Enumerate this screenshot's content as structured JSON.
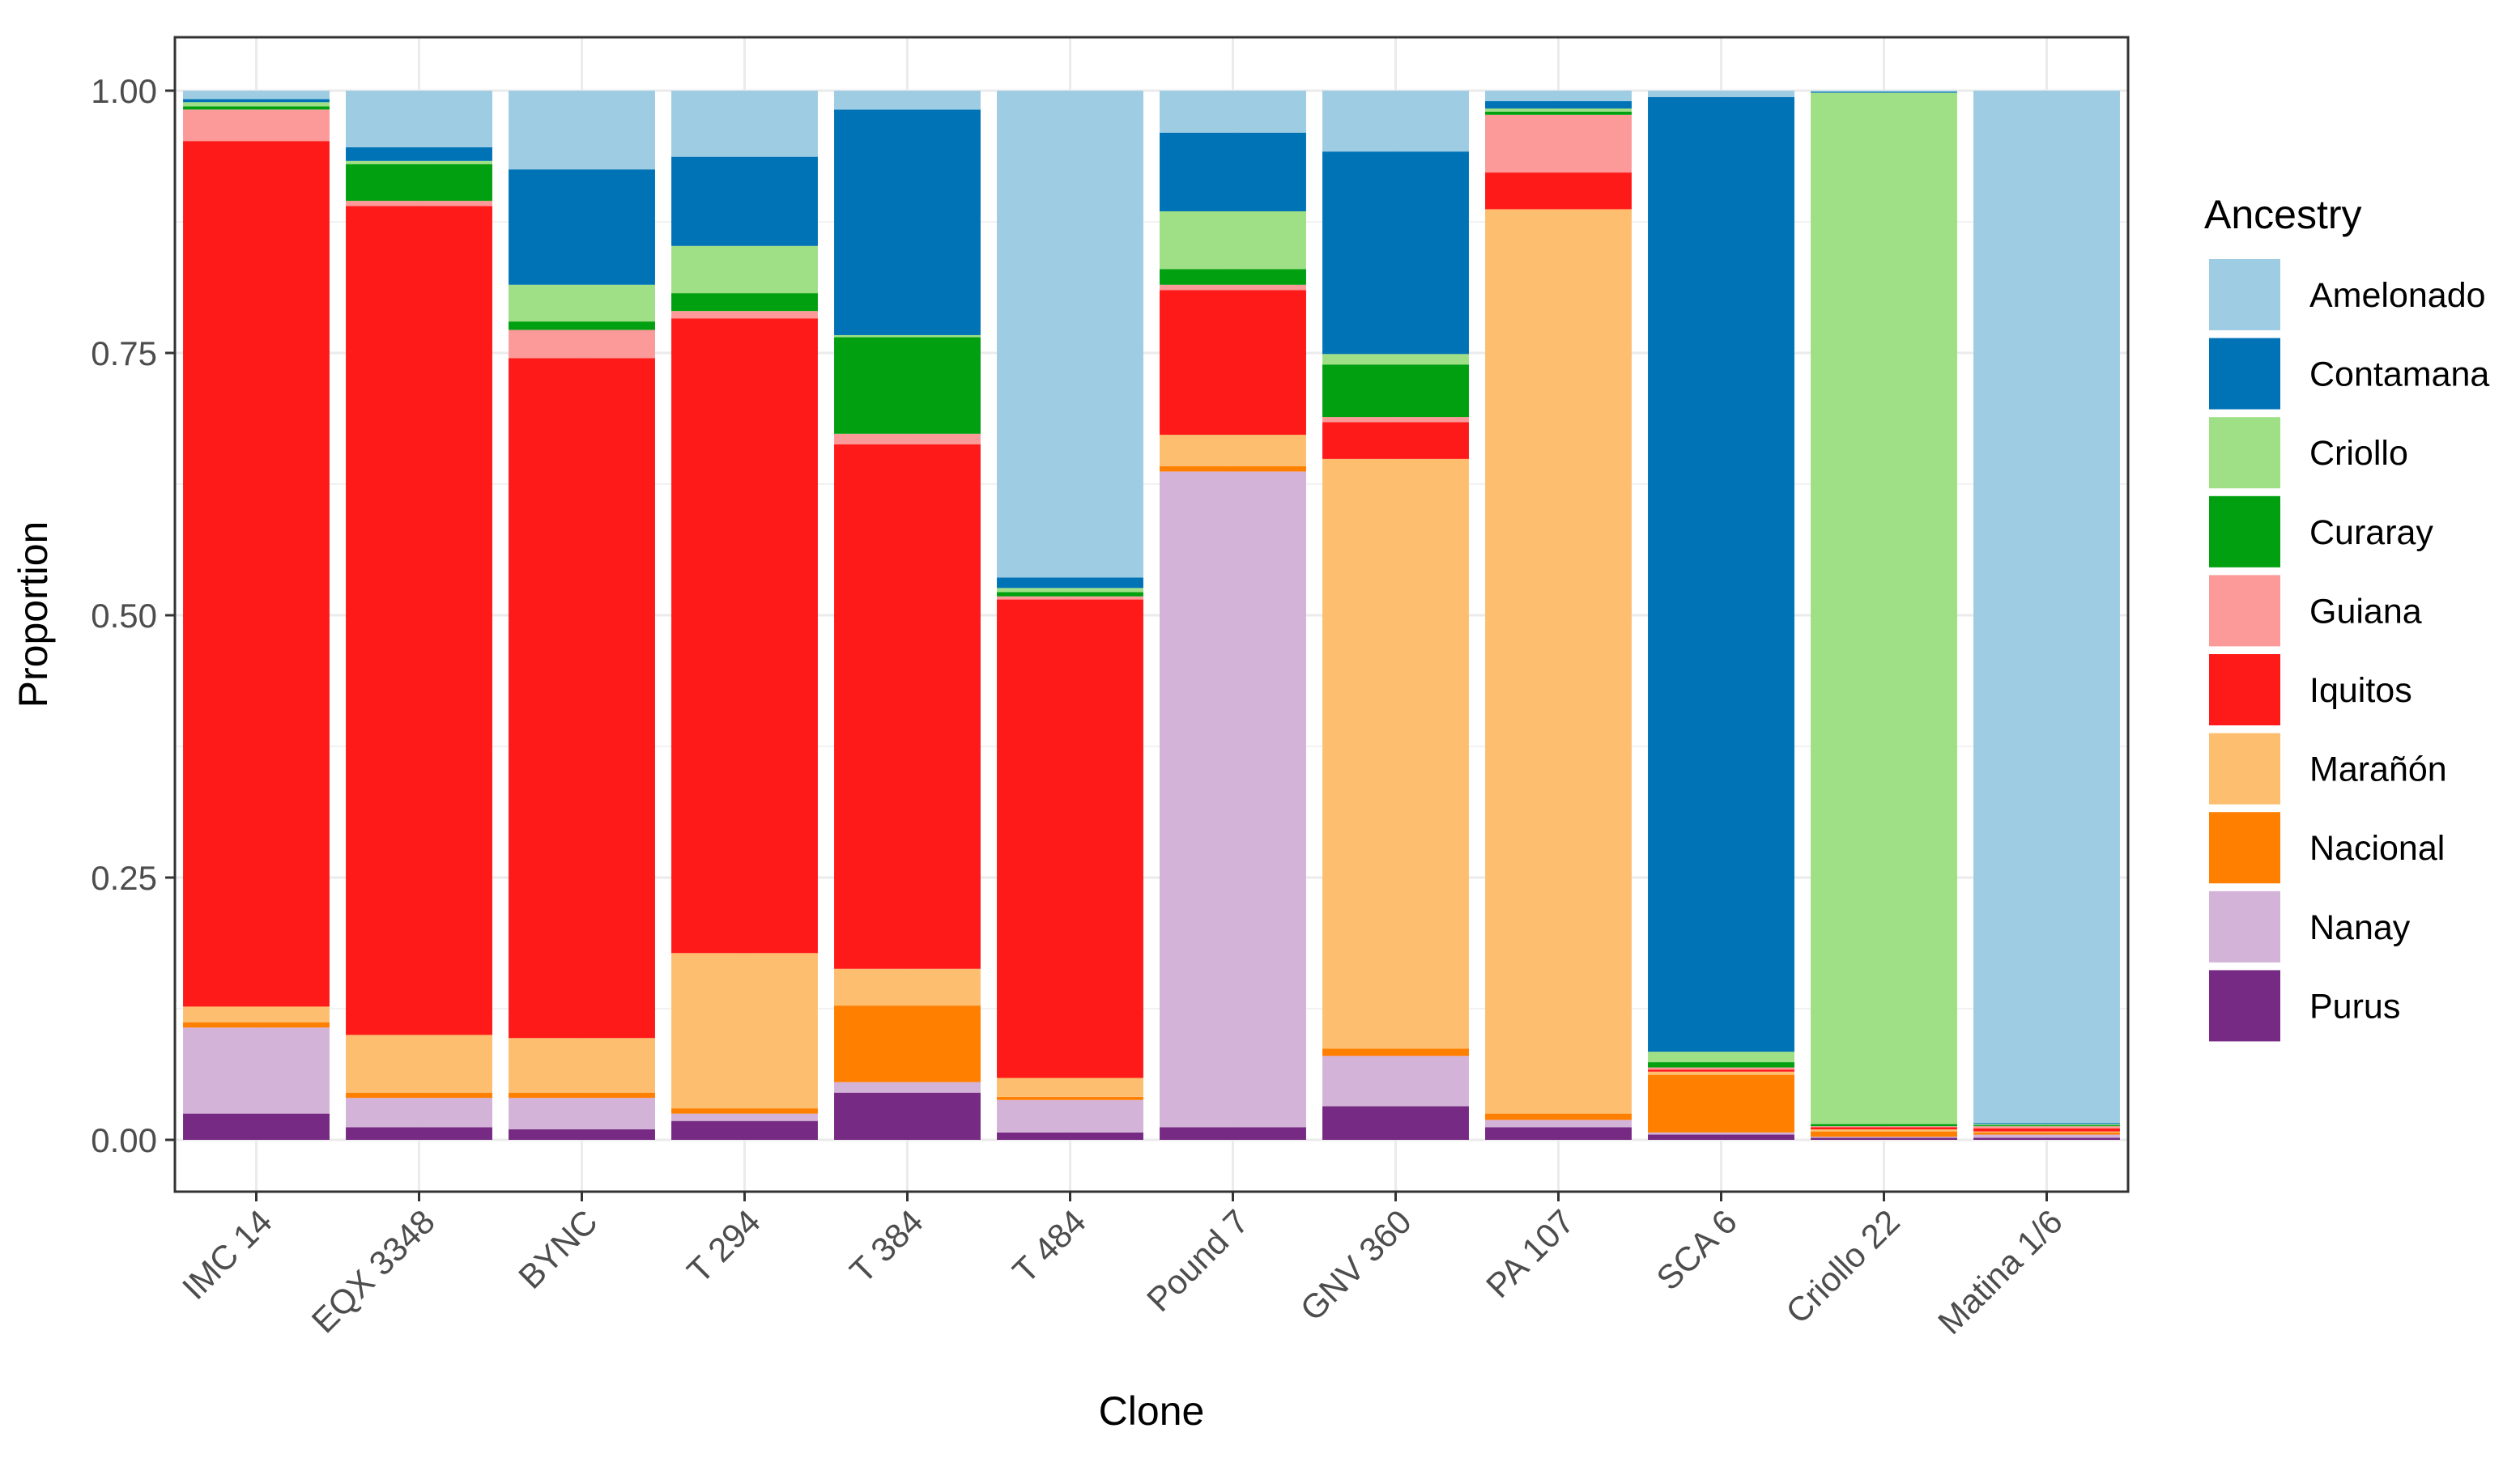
{
  "chart_data": {
    "type": "bar",
    "stacked": true,
    "xlabel": "Clone",
    "ylabel": "Proportion",
    "ylim": [
      0,
      1
    ],
    "yticks": [
      "0.00",
      "0.25",
      "0.50",
      "0.75",
      "1.00"
    ],
    "ytick_values": [
      0,
      0.25,
      0.5,
      0.75,
      1.0
    ],
    "grid": true,
    "legend_title": "Ancestry",
    "legend_position": "right",
    "categories": [
      "IMC 14",
      "EQX 3348",
      "BYNC",
      "T 294",
      "T 384",
      "T 484",
      "Pound 7",
      "GNV 360",
      "PA 107",
      "SCA 6",
      "Criollo 22",
      "Matina 1/6"
    ],
    "series": [
      {
        "name": "Purus",
        "color": "#762A83",
        "values": [
          0.025,
          0.012,
          0.01,
          0.018,
          0.045,
          0.007,
          0.012,
          0.032,
          0.012,
          0.005,
          0.002,
          0.002
        ]
      },
      {
        "name": "Nanay",
        "color": "#D4B3D9",
        "values": [
          0.082,
          0.028,
          0.03,
          0.007,
          0.01,
          0.031,
          0.625,
          0.048,
          0.007,
          0.002,
          0.001,
          0.003
        ]
      },
      {
        "name": "Nacional",
        "color": "#FF7F00",
        "values": [
          0.005,
          0.005,
          0.005,
          0.005,
          0.073,
          0.003,
          0.005,
          0.007,
          0.006,
          0.055,
          0.005,
          0.002
        ]
      },
      {
        "name": "Marañón",
        "color": "#FDBF6F",
        "values": [
          0.015,
          0.055,
          0.052,
          0.148,
          0.035,
          0.018,
          0.03,
          0.562,
          0.862,
          0.003,
          0.002,
          0.001
        ]
      },
      {
        "name": "Iquitos",
        "color": "#FF1A1A",
        "values": [
          0.825,
          0.79,
          0.648,
          0.605,
          0.5,
          0.456,
          0.138,
          0.035,
          0.035,
          0.002,
          0.002,
          0.003
        ]
      },
      {
        "name": "Guiana",
        "color": "#FB9A99",
        "values": [
          0.03,
          0.005,
          0.027,
          0.007,
          0.01,
          0.003,
          0.005,
          0.005,
          0.055,
          0.002,
          0.001,
          0.002
        ]
      },
      {
        "name": "Curaray",
        "color": "#00A010",
        "values": [
          0.003,
          0.035,
          0.008,
          0.017,
          0.092,
          0.004,
          0.015,
          0.05,
          0.003,
          0.005,
          0.002,
          0.001
        ]
      },
      {
        "name": "Criollo",
        "color": "#9FDF85",
        "values": [
          0.004,
          0.003,
          0.035,
          0.045,
          0.002,
          0.004,
          0.055,
          0.01,
          0.003,
          0.01,
          0.983,
          0.001
        ]
      },
      {
        "name": "Contamana",
        "color": "#0073B6",
        "values": [
          0.003,
          0.013,
          0.11,
          0.085,
          0.215,
          0.01,
          0.075,
          0.193,
          0.007,
          0.91,
          0.001,
          0.001
        ]
      },
      {
        "name": "Amelonado",
        "color": "#9DCCE3",
        "values": [
          0.008,
          0.054,
          0.075,
          0.063,
          0.018,
          0.464,
          0.04,
          0.058,
          0.01,
          0.006,
          0.001,
          0.984
        ]
      }
    ]
  }
}
